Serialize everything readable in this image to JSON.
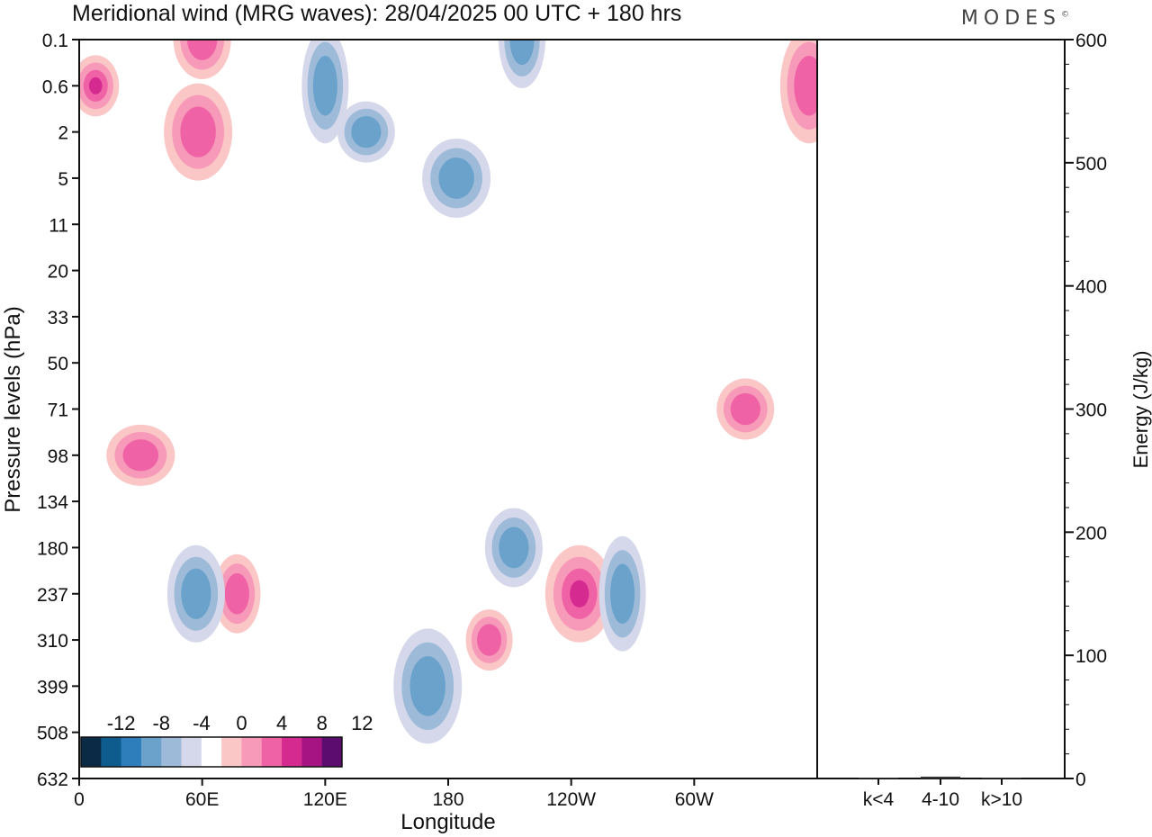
{
  "header": {
    "title": "Meridional wind (MRG waves):  28/04/2025  00 UTC  + 180 hrs",
    "brand": "MODES",
    "brand_mark": "©"
  },
  "chart_data": [
    {
      "type": "heatmap",
      "title": "Meridional wind (MRG waves):  28/04/2025  00 UTC  + 180 hrs",
      "xlabel": "Longitude",
      "ylabel": "Pressure levels (hPa)",
      "x_ticks": [
        "0",
        "60E",
        "120E",
        "180",
        "120W",
        "60W"
      ],
      "x_tick_degrees": [
        0,
        60,
        120,
        180,
        240,
        300
      ],
      "xlim": [
        0,
        360
      ],
      "y_ticks": [
        "0.1",
        "0.6",
        "2",
        "5",
        "11",
        "20",
        "33",
        "50",
        "71",
        "98",
        "134",
        "180",
        "237",
        "310",
        "399",
        "508",
        "632"
      ],
      "y_scale": "categorical pressure levels (top = 0.1 hPa, bottom = 632 hPa)",
      "colorbar": {
        "labels": [
          "-12",
          "-8",
          "-4",
          "0",
          "4",
          "8",
          "12"
        ],
        "levels": [
          -14,
          -12,
          -10,
          -8,
          -6,
          -4,
          -2,
          2,
          4,
          6,
          8,
          10,
          12,
          14
        ],
        "colors": [
          "#0b2a45",
          "#0e5c8e",
          "#2d7eba",
          "#6aa2cb",
          "#9dbbd9",
          "#d5d8ea",
          "#ffffff",
          "#fac6c6",
          "#f799b8",
          "#ef63a6",
          "#d52a8f",
          "#a51482",
          "#5c0b6e"
        ],
        "placement": "lower-left inside plot"
      },
      "features": [
        {
          "sign": "+",
          "lon": 8,
          "level": "0.6",
          "peak": 8
        },
        {
          "sign": "+",
          "lon": 60,
          "level": "0.1",
          "peak": 6
        },
        {
          "sign": "+",
          "lon": 58,
          "level": "2",
          "peak": 6
        },
        {
          "sign": "-",
          "lon": 120,
          "level": "0.6",
          "peak": -6
        },
        {
          "sign": "-",
          "lon": 140,
          "level": "2",
          "peak": -6
        },
        {
          "sign": "-",
          "lon": 184,
          "level": "5",
          "peak": -5
        },
        {
          "sign": "-",
          "lon": 216,
          "level": "0.1",
          "peak": -5
        },
        {
          "sign": "+",
          "lon": 356,
          "level": "0.6",
          "peak": 6
        },
        {
          "sign": "+",
          "lon": 30,
          "level": "98",
          "peak": 6
        },
        {
          "sign": "+",
          "lon": 77,
          "level": "237",
          "peak": 6
        },
        {
          "sign": "-",
          "lon": 57,
          "level": "237",
          "peak": -5
        },
        {
          "sign": "-",
          "lon": 170,
          "level": "399",
          "peak": -5
        },
        {
          "sign": "+",
          "lon": 200,
          "level": "310",
          "peak": 6
        },
        {
          "sign": "-",
          "lon": 212,
          "level": "180",
          "peak": -5
        },
        {
          "sign": "+",
          "lon": 244,
          "level": "237",
          "peak": 8
        },
        {
          "sign": "-",
          "lon": 265,
          "level": "237",
          "peak": -6
        },
        {
          "sign": "+",
          "lon": 325,
          "level": "71",
          "peak": 6
        }
      ]
    },
    {
      "type": "bar",
      "title": "",
      "ylabel": "Energy (J/kg)",
      "ylim": [
        0,
        600
      ],
      "y_ticks": [
        "0",
        "100",
        "200",
        "300",
        "400",
        "500",
        "600"
      ],
      "categories": [
        "k<4",
        "4-10",
        "k>10"
      ],
      "values": [
        0.5,
        1.5,
        0.3
      ],
      "y_axis_side": "right"
    }
  ]
}
